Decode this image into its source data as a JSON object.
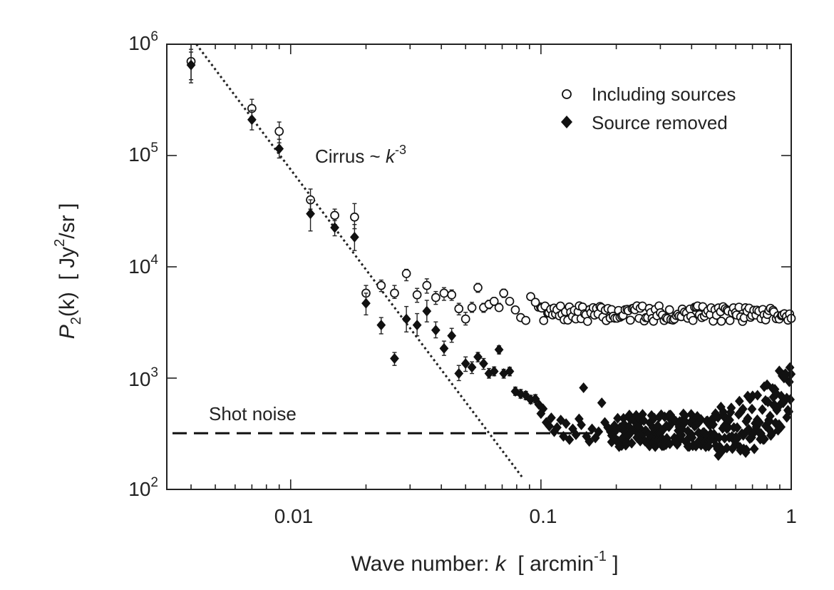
{
  "chart_data": {
    "type": "scatter",
    "xscale": "log",
    "yscale": "log",
    "xlim": [
      0.0032,
      1.0
    ],
    "ylim": [
      100,
      1000000
    ],
    "xlabel": {
      "prefix": "Wave number: ",
      "var": "k",
      "unit": "[ arcmin",
      "exp": "-1",
      "close": " ]"
    },
    "ylabel": {
      "P": "P",
      "sub": "2",
      "arg": "(k)",
      "unit": "[ Jy",
      "exp": "2",
      "rest": "/sr ]"
    },
    "xticks": [
      {
        "v": 0.01,
        "label": "0.01"
      },
      {
        "v": 0.1,
        "label": "0.1"
      },
      {
        "v": 1,
        "label": "1"
      }
    ],
    "yticks": [
      {
        "v": 100,
        "base": "10",
        "exp": "2"
      },
      {
        "v": 1000,
        "base": "10",
        "exp": "3"
      },
      {
        "v": 10000,
        "base": "10",
        "exp": "4"
      },
      {
        "v": 100000,
        "base": "10",
        "exp": "5"
      },
      {
        "v": 1000000,
        "base": "10",
        "exp": "6"
      }
    ],
    "legend": {
      "position": "top-right",
      "entries": [
        {
          "name": "Including sources",
          "marker": "open-circle"
        },
        {
          "name": "Source removed",
          "marker": "filled-diamond"
        }
      ]
    },
    "annotations": {
      "cirrus": {
        "text": "Cirrus ~ ",
        "var": "k",
        "exp": "-3"
      },
      "shot_noise": {
        "text": "Shot noise"
      }
    },
    "cirrus_line": {
      "x": [
        0.0042,
        0.085
      ],
      "y": [
        1000000,
        125
      ]
    },
    "shot_noise_level": 320,
    "series": [
      {
        "name": "Including sources",
        "marker": "open-circle",
        "points": [
          [
            0.004,
            700000,
            480000,
            900000
          ],
          [
            0.007,
            265000,
            220000,
            320000
          ],
          [
            0.009,
            165000,
            130000,
            200000
          ],
          [
            0.012,
            40000,
            33000,
            50000
          ],
          [
            0.015,
            29000,
            24000,
            33000
          ],
          [
            0.018,
            28000,
            22000,
            37000
          ],
          [
            0.02,
            5800,
            4800,
            6800
          ],
          [
            0.023,
            6800,
            6000,
            7600
          ],
          [
            0.026,
            5800,
            5200,
            6800
          ],
          [
            0.029,
            8700,
            7500,
            9500
          ],
          [
            0.032,
            5600,
            4800,
            6400
          ],
          [
            0.035,
            6800,
            5800,
            7800
          ],
          [
            0.038,
            5300,
            4600,
            6000
          ],
          [
            0.041,
            5800,
            5000,
            6500
          ],
          [
            0.044,
            5600,
            5000,
            6200
          ],
          [
            0.047,
            4200,
            3700,
            4700
          ],
          [
            0.05,
            3400,
            3000,
            3900
          ],
          [
            0.053,
            4300,
            3900,
            4800
          ],
          [
            0.056,
            6500,
            5900,
            7100
          ],
          [
            0.059,
            4300,
            3900,
            4700
          ],
          [
            0.062,
            4600,
            4200,
            5000
          ],
          [
            0.065,
            4900,
            4500,
            5300
          ],
          [
            0.068,
            4300,
            4000,
            4700
          ],
          [
            0.071,
            5800,
            5300,
            6300
          ],
          [
            0.075,
            4900,
            4600,
            5200
          ],
          [
            0.079,
            4100,
            3800,
            4400
          ],
          [
            0.083,
            3500,
            3300,
            3700
          ],
          [
            0.087,
            3300,
            3100,
            3500
          ],
          [
            0.091,
            5400,
            5100,
            5700
          ],
          [
            0.095,
            4800,
            4500,
            5100
          ]
        ],
        "band": {
          "xmin": 0.098,
          "xmax": 1.0,
          "center": 3800,
          "amplitude": 0.07,
          "count": 150,
          "seed": 7
        }
      },
      {
        "name": "Source removed",
        "marker": "filled-diamond",
        "points": [
          [
            0.004,
            650000,
            450000,
            850000
          ],
          [
            0.007,
            210000,
            170000,
            255000
          ],
          [
            0.009,
            115000,
            95000,
            140000
          ],
          [
            0.012,
            30000,
            21000,
            40000
          ],
          [
            0.015,
            22500,
            19000,
            26000
          ],
          [
            0.018,
            18500,
            14000,
            24000
          ],
          [
            0.02,
            4700,
            3700,
            5800
          ],
          [
            0.023,
            3000,
            2500,
            3500
          ],
          [
            0.026,
            1500,
            1300,
            1700
          ],
          [
            0.029,
            3400,
            2600,
            4400
          ],
          [
            0.032,
            3000,
            2400,
            3800
          ],
          [
            0.035,
            4000,
            3200,
            5000
          ],
          [
            0.038,
            2700,
            2300,
            3200
          ],
          [
            0.041,
            1850,
            1600,
            2150
          ],
          [
            0.044,
            2400,
            2100,
            2800
          ],
          [
            0.047,
            1100,
            950,
            1300
          ],
          [
            0.05,
            1350,
            1150,
            1550
          ],
          [
            0.053,
            1250,
            1100,
            1400
          ],
          [
            0.056,
            1550,
            1400,
            1700
          ],
          [
            0.059,
            1350,
            1200,
            1500
          ],
          [
            0.062,
            1100,
            1000,
            1220
          ],
          [
            0.065,
            1150,
            1050,
            1260
          ],
          [
            0.068,
            1800,
            1650,
            1950
          ],
          [
            0.071,
            1100,
            1000,
            1200
          ],
          [
            0.075,
            1150,
            1050,
            1250
          ],
          [
            0.079,
            760,
            700,
            830
          ],
          [
            0.083,
            720,
            660,
            790
          ],
          [
            0.087,
            700,
            640,
            760
          ],
          [
            0.091,
            640,
            590,
            700
          ],
          [
            0.095,
            650,
            600,
            710
          ]
        ],
        "extra_points": [
          [
            0.098,
            580
          ],
          [
            0.1,
            480
          ],
          [
            0.102,
            530
          ],
          [
            0.105,
            400
          ],
          [
            0.108,
            370
          ],
          [
            0.11,
            440
          ],
          [
            0.113,
            330
          ],
          [
            0.116,
            360
          ],
          [
            0.12,
            420
          ],
          [
            0.123,
            300
          ],
          [
            0.126,
            390
          ],
          [
            0.13,
            280
          ],
          [
            0.134,
            350
          ],
          [
            0.138,
            310
          ],
          [
            0.142,
            430
          ],
          [
            0.145,
            380
          ],
          [
            0.148,
            820
          ],
          [
            0.152,
            300
          ],
          [
            0.156,
            270
          ],
          [
            0.16,
            350
          ],
          [
            0.165,
            290
          ],
          [
            0.17,
            330
          ],
          [
            0.175,
            600
          ],
          [
            0.18,
            400
          ],
          [
            0.185,
            360
          ]
        ],
        "band": {
          "xmin": 0.19,
          "xmax": 1.0,
          "center": 340,
          "amplitude": 0.15,
          "rise_from": 0.5,
          "rise_to": 800,
          "count": 260,
          "seed": 13
        }
      }
    ]
  }
}
